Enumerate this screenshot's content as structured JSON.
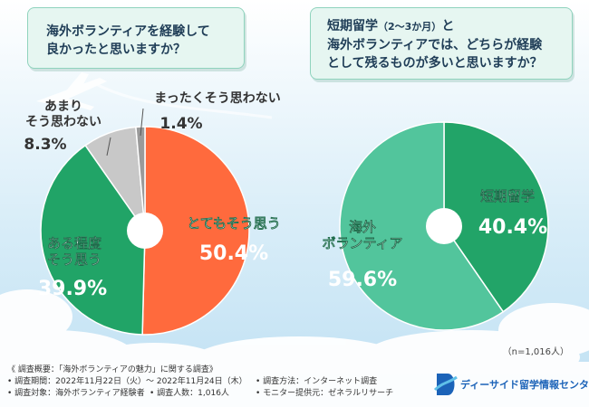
{
  "questions": {
    "q1_line1": "海外ボランティアを経験して",
    "q1_line2": "良かったと思いますか？",
    "q2_line1_a": "短期留学",
    "q2_line1_b": "（2〜3か月）",
    "q2_line1_c": "と",
    "q2_line2": "海外ボランティアでは、どちらが経験",
    "q2_line3": "として残るものが多いと思いますか？"
  },
  "chart_data": [
    {
      "type": "pie",
      "slices": [
        {
          "label_lines": [
            "とてもそう思う"
          ],
          "value": 50.4,
          "value_label": "50.4%",
          "color": "#ff6a3d",
          "label_color": "#ffffff"
        },
        {
          "label_lines": [
            "ある程度",
            "そう思う"
          ],
          "value": 39.9,
          "value_label": "39.9%",
          "color": "#21a467",
          "label_color": "#ffffff"
        },
        {
          "label_lines": [
            "あまり",
            "そう思わない"
          ],
          "value": 8.3,
          "value_label": "8.3%",
          "color": "#c8c8c8",
          "label_color": "#333333"
        },
        {
          "label_lines": [
            "まったくそう思わない"
          ],
          "value": 1.4,
          "value_label": "1.4%",
          "color": "#9a9a9a",
          "label_color": "#333333"
        }
      ]
    },
    {
      "type": "pie",
      "slices": [
        {
          "label_lines": [
            "短期留学"
          ],
          "value": 40.4,
          "value_label": "40.4%",
          "color": "#22a468",
          "label_color": "#ffffff"
        },
        {
          "label_lines": [
            "海外",
            "ボランティア"
          ],
          "value": 59.6,
          "value_label": "59.6%",
          "color": "#52c59c",
          "label_color": "#ffffff"
        }
      ]
    }
  ],
  "footer": {
    "sample_note": "（n=1,016人）",
    "summary_title": "《 調査概要：「海外ボランティアの魅力」に関する調査》",
    "period": "• 調査期間：2022年11月22日（火）〜 2022年11月24日（木）",
    "method": "• 調査方法：インターネット調査",
    "target": "• 調査対象：海外ボランティア経験者",
    "count": "• 調査人数：1,016人",
    "provider": "• モニター提供元：ゼネラルリサーチ"
  },
  "logo": {
    "text": "ディーサイド留学情報センター",
    "color": "#1c63b8"
  }
}
